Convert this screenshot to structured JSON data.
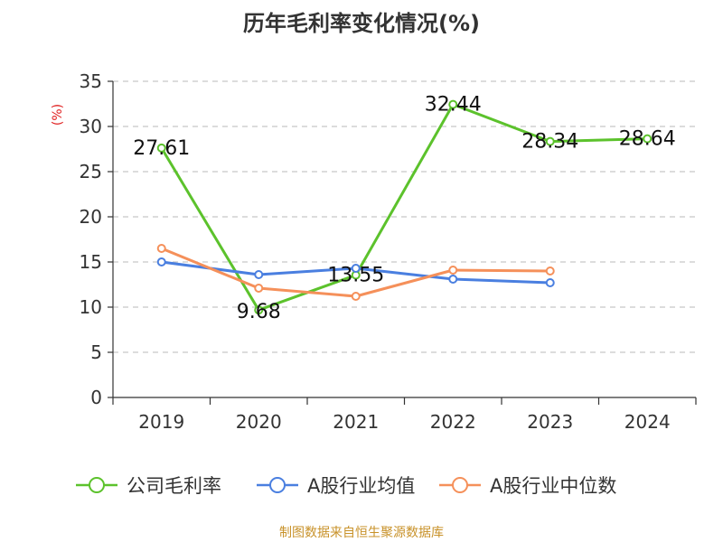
{
  "chart_data": {
    "type": "line",
    "title": "历年毛利率变化情况(%)",
    "ylabel": "(%)",
    "xlabel": "",
    "categories": [
      "2019",
      "2020",
      "2021",
      "2022",
      "2023",
      "2024"
    ],
    "ylim": [
      0,
      35
    ],
    "yticks": [
      0,
      5,
      10,
      15,
      20,
      25,
      30,
      35
    ],
    "grid": true,
    "legend_position": "bottom",
    "series": [
      {
        "name": "公司毛利率",
        "color": "#5cc22c",
        "values": [
          27.61,
          9.68,
          13.55,
          32.44,
          28.34,
          28.64
        ],
        "labels": [
          "27.61",
          "9.68",
          "13.55",
          "32.44",
          "28.34",
          "28.64"
        ]
      },
      {
        "name": "A股行业均值",
        "color": "#4a7fe0",
        "values": [
          15.0,
          13.6,
          14.3,
          13.1,
          12.7,
          null
        ],
        "labels": []
      },
      {
        "name": "A股行业中位数",
        "color": "#f5905a",
        "values": [
          16.5,
          12.1,
          11.2,
          14.1,
          14.0,
          null
        ],
        "labels": []
      }
    ],
    "source": "制图数据来自恒生聚源数据库"
  }
}
